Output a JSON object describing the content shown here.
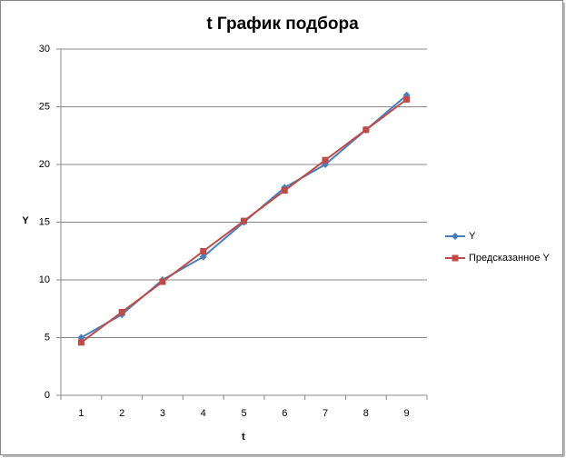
{
  "chart_data": {
    "type": "line",
    "title": "t График подбора",
    "x_label": "t",
    "y_label": "Y",
    "categories": [
      "1",
      "2",
      "3",
      "4",
      "5",
      "6",
      "7",
      "8",
      "9"
    ],
    "series": [
      {
        "name": "Y",
        "color": "#4a7ebb",
        "marker": "diamond",
        "values": [
          5,
          7,
          10,
          12,
          15,
          18,
          20,
          23,
          26
        ]
      },
      {
        "name": "Предсказанное Y",
        "color": "#be4b48",
        "marker": "square",
        "values": [
          4.58,
          7.21,
          9.84,
          12.48,
          15.11,
          17.74,
          20.38,
          23.01,
          25.64
        ]
      }
    ],
    "ylim": [
      0,
      30
    ],
    "yticks": [
      0,
      5,
      10,
      15,
      20,
      25,
      30
    ],
    "grid": true,
    "legend": "right"
  }
}
